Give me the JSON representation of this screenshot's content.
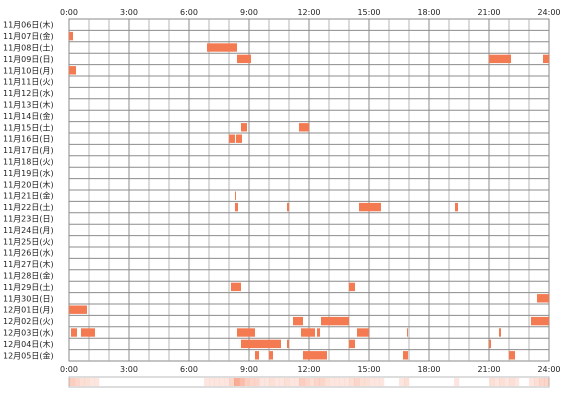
{
  "chart_data": {
    "type": "heatmap",
    "title": "",
    "xlabel": "",
    "ylabel": "",
    "x_range_hours": [
      0,
      24
    ],
    "x_ticks": [
      "0:00",
      "3:00",
      "6:00",
      "9:00",
      "12:00",
      "15:00",
      "18:00",
      "21:00",
      "24:00"
    ],
    "grid": true,
    "bar_color": "#f47a52",
    "gradient_color": "#ffd5c0",
    "rows": [
      {
        "label": "11月06日(木)",
        "intervals": []
      },
      {
        "label": "11月07日(金)",
        "intervals": [
          [
            0.0,
            0.2
          ]
        ]
      },
      {
        "label": "11月08日(土)",
        "intervals": [
          [
            6.9,
            8.4
          ]
        ]
      },
      {
        "label": "11月09日(日)",
        "intervals": [
          [
            8.4,
            9.1
          ],
          [
            21.0,
            22.1
          ],
          [
            23.7,
            24.0
          ]
        ]
      },
      {
        "label": "11月10日(月)",
        "intervals": [
          [
            0.0,
            0.35
          ]
        ]
      },
      {
        "label": "11月11日(火)",
        "intervals": []
      },
      {
        "label": "11月12日(水)",
        "intervals": []
      },
      {
        "label": "11月13日(木)",
        "intervals": []
      },
      {
        "label": "11月14日(金)",
        "intervals": []
      },
      {
        "label": "11月15日(土)",
        "intervals": [
          [
            8.6,
            8.9
          ],
          [
            11.5,
            12.0
          ]
        ]
      },
      {
        "label": "11月16日(日)",
        "intervals": [
          [
            8.0,
            8.3
          ],
          [
            8.35,
            8.65
          ]
        ]
      },
      {
        "label": "11月17日(月)",
        "intervals": []
      },
      {
        "label": "11月18日(火)",
        "intervals": []
      },
      {
        "label": "11月19日(水)",
        "intervals": []
      },
      {
        "label": "11月20日(木)",
        "intervals": []
      },
      {
        "label": "11月21日(金)",
        "intervals": [
          [
            8.3,
            8.35
          ]
        ]
      },
      {
        "label": "11月22日(土)",
        "intervals": [
          [
            8.3,
            8.45
          ],
          [
            10.9,
            11.0
          ],
          [
            14.5,
            15.6
          ],
          [
            19.3,
            19.45
          ]
        ]
      },
      {
        "label": "11月23日(日)",
        "intervals": []
      },
      {
        "label": "11月24日(月)",
        "intervals": []
      },
      {
        "label": "11月25日(火)",
        "intervals": []
      },
      {
        "label": "11月26日(水)",
        "intervals": []
      },
      {
        "label": "11月27日(木)",
        "intervals": []
      },
      {
        "label": "11月28日(金)",
        "intervals": []
      },
      {
        "label": "11月29日(土)",
        "intervals": [
          [
            8.1,
            8.6
          ],
          [
            14.0,
            14.3
          ]
        ]
      },
      {
        "label": "11月30日(日)",
        "intervals": [
          [
            23.4,
            24.0
          ]
        ]
      },
      {
        "label": "12月01日(月)",
        "intervals": [
          [
            0.0,
            0.9
          ]
        ]
      },
      {
        "label": "12月02日(火)",
        "intervals": [
          [
            11.2,
            11.7
          ],
          [
            12.6,
            14.0
          ],
          [
            23.1,
            24.0
          ]
        ]
      },
      {
        "label": "12月03日(水)",
        "intervals": [
          [
            0.1,
            0.4
          ],
          [
            0.6,
            1.3
          ],
          [
            8.4,
            9.3
          ],
          [
            11.6,
            12.3
          ],
          [
            12.4,
            12.55
          ],
          [
            14.4,
            15.0
          ],
          [
            16.9,
            16.95
          ],
          [
            21.5,
            21.6
          ]
        ]
      },
      {
        "label": "12月04日(木)",
        "intervals": [
          [
            8.6,
            10.6
          ],
          [
            10.9,
            11.0
          ],
          [
            14.0,
            14.3
          ],
          [
            21.0,
            21.1
          ]
        ]
      },
      {
        "label": "12月05日(金)",
        "intervals": [
          [
            9.3,
            9.5
          ],
          [
            10.0,
            10.2
          ],
          [
            11.7,
            12.9
          ],
          [
            16.7,
            16.95
          ],
          [
            22.0,
            22.3
          ]
        ]
      }
    ]
  }
}
